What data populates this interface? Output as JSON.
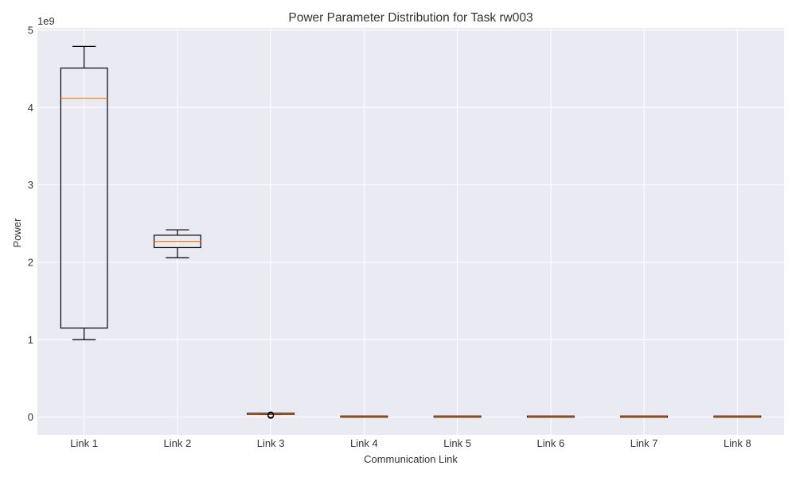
{
  "chart_data": {
    "type": "boxplot",
    "title": "Power Parameter Distribution for Task rw003",
    "xlabel": "Communication Link",
    "ylabel": "Power",
    "y_offset_label": "1e9",
    "y_scale": 1000000000,
    "ylim": [
      -0.23,
      5.03
    ],
    "y_ticks": [
      0,
      1,
      2,
      3,
      4,
      5
    ],
    "grid": true,
    "colors": {
      "plot_background": "#eaeaf2",
      "grid": "#ffffff",
      "box_edge": "#000000",
      "median": "#ff7f0e"
    },
    "categories": [
      "Link 1",
      "Link 2",
      "Link 3",
      "Link 4",
      "Link 5",
      "Link 6",
      "Link 7",
      "Link 8"
    ],
    "boxes": [
      {
        "label": "Link 1",
        "whisker_low": 1.0,
        "q1": 1.15,
        "median": 4.12,
        "q3": 4.51,
        "whisker_high": 4.79,
        "outliers": []
      },
      {
        "label": "Link 2",
        "whisker_low": 2.06,
        "q1": 2.19,
        "median": 2.27,
        "q3": 2.35,
        "whisker_high": 2.42,
        "outliers": []
      },
      {
        "label": "Link 3",
        "whisker_low": 0.035,
        "q1": 0.038,
        "median": 0.04,
        "q3": 0.042,
        "whisker_high": 0.045,
        "outliers": [
          0.02,
          0.025,
          0.03
        ]
      },
      {
        "label": "Link 4",
        "whisker_low": 0.003,
        "q1": 0.004,
        "median": 0.005,
        "q3": 0.006,
        "whisker_high": 0.007,
        "outliers": []
      },
      {
        "label": "Link 5",
        "whisker_low": 0.003,
        "q1": 0.004,
        "median": 0.005,
        "q3": 0.006,
        "whisker_high": 0.007,
        "outliers": []
      },
      {
        "label": "Link 6",
        "whisker_low": 0.003,
        "q1": 0.004,
        "median": 0.005,
        "q3": 0.006,
        "whisker_high": 0.007,
        "outliers": []
      },
      {
        "label": "Link 7",
        "whisker_low": 0.003,
        "q1": 0.004,
        "median": 0.005,
        "q3": 0.006,
        "whisker_high": 0.007,
        "outliers": []
      },
      {
        "label": "Link 8",
        "whisker_low": 0.003,
        "q1": 0.004,
        "median": 0.005,
        "q3": 0.006,
        "whisker_high": 0.007,
        "outliers": []
      }
    ]
  }
}
